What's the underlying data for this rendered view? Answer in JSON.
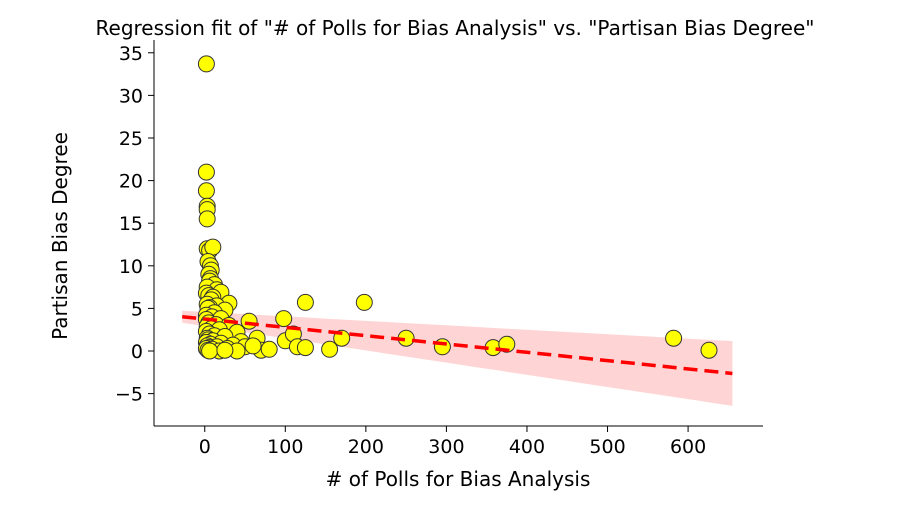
{
  "chart_data": {
    "type": "scatter",
    "title": "Regression fit of \"# of Polls for Bias Analysis\" vs. \"Partisan Bias Degree\"",
    "xlabel": "# of Polls for Bias Analysis",
    "ylabel": "Partisan Bias Degree",
    "xlim": [
      -63,
      693
    ],
    "ylim": [
      -8.8,
      36.5
    ],
    "xticks": [
      0,
      100,
      200,
      300,
      400,
      500,
      600
    ],
    "yticks": [
      -5,
      0,
      5,
      10,
      15,
      20,
      25,
      30,
      35
    ],
    "grid": false,
    "point_color": "#ffff00",
    "point_edge_color": "#333333",
    "line_color": "#ff0000",
    "band_color": "#ffcccc",
    "points": [
      [
        2,
        33.7
      ],
      [
        2,
        21.0
      ],
      [
        2,
        18.8
      ],
      [
        3,
        17.0
      ],
      [
        3,
        16.6
      ],
      [
        3,
        15.5
      ],
      [
        3,
        12.0
      ],
      [
        6,
        11.8
      ],
      [
        10,
        12.2
      ],
      [
        4,
        10.5
      ],
      [
        7,
        10.0
      ],
      [
        8,
        9.5
      ],
      [
        5,
        9.0
      ],
      [
        7,
        8.5
      ],
      [
        6,
        8.2
      ],
      [
        12,
        7.8
      ],
      [
        3,
        7.5
      ],
      [
        15,
        7.2
      ],
      [
        20,
        6.9
      ],
      [
        2,
        6.8
      ],
      [
        5,
        6.5
      ],
      [
        10,
        6.3
      ],
      [
        8,
        6.0
      ],
      [
        30,
        5.6
      ],
      [
        3,
        5.5
      ],
      [
        15,
        5.3
      ],
      [
        6,
        5.1
      ],
      [
        4,
        5.0
      ],
      [
        25,
        4.8
      ],
      [
        12,
        4.5
      ],
      [
        2,
        4.2
      ],
      [
        9,
        4.0
      ],
      [
        20,
        3.8
      ],
      [
        2,
        3.7
      ],
      [
        55,
        3.5
      ],
      [
        5,
        3.3
      ],
      [
        14,
        3.1
      ],
      [
        30,
        3.0
      ],
      [
        3,
        2.9
      ],
      [
        8,
        2.6
      ],
      [
        18,
        2.5
      ],
      [
        2,
        2.3
      ],
      [
        40,
        2.2
      ],
      [
        6,
        2.0
      ],
      [
        12,
        1.8
      ],
      [
        25,
        1.7
      ],
      [
        3,
        1.5
      ],
      [
        65,
        1.5
      ],
      [
        4,
        1.3
      ],
      [
        10,
        1.2
      ],
      [
        45,
        1.1
      ],
      [
        2,
        1.0
      ],
      [
        20,
        0.9
      ],
      [
        7,
        0.8
      ],
      [
        35,
        0.7
      ],
      [
        3,
        0.6
      ],
      [
        15,
        0.5
      ],
      [
        50,
        0.5
      ],
      [
        5,
        0.4
      ],
      [
        2,
        0.3
      ],
      [
        28,
        0.3
      ],
      [
        9,
        0.2
      ],
      [
        4,
        0.1
      ],
      [
        70,
        0.1
      ],
      [
        18,
        0.0
      ],
      [
        6,
        0.0
      ],
      [
        40,
        0.0
      ],
      [
        60,
        0.6
      ],
      [
        80,
        0.2
      ],
      [
        25,
        0.1
      ],
      [
        98,
        3.8
      ],
      [
        100,
        1.2
      ],
      [
        110,
        2.0
      ],
      [
        115,
        0.5
      ],
      [
        125,
        5.7
      ],
      [
        125,
        0.4
      ],
      [
        155,
        0.2
      ],
      [
        170,
        1.5
      ],
      [
        198,
        5.7
      ],
      [
        250,
        1.5
      ],
      [
        295,
        0.5
      ],
      [
        358,
        0.4
      ],
      [
        375,
        0.8
      ],
      [
        582,
        1.5
      ],
      [
        626,
        0.1
      ]
    ],
    "regression": {
      "x_range": [
        -28,
        655
      ],
      "intercept": 3.75,
      "slope": -0.00975,
      "ci_half_width_start": 0.7,
      "ci_half_width_end": 3.8
    }
  }
}
